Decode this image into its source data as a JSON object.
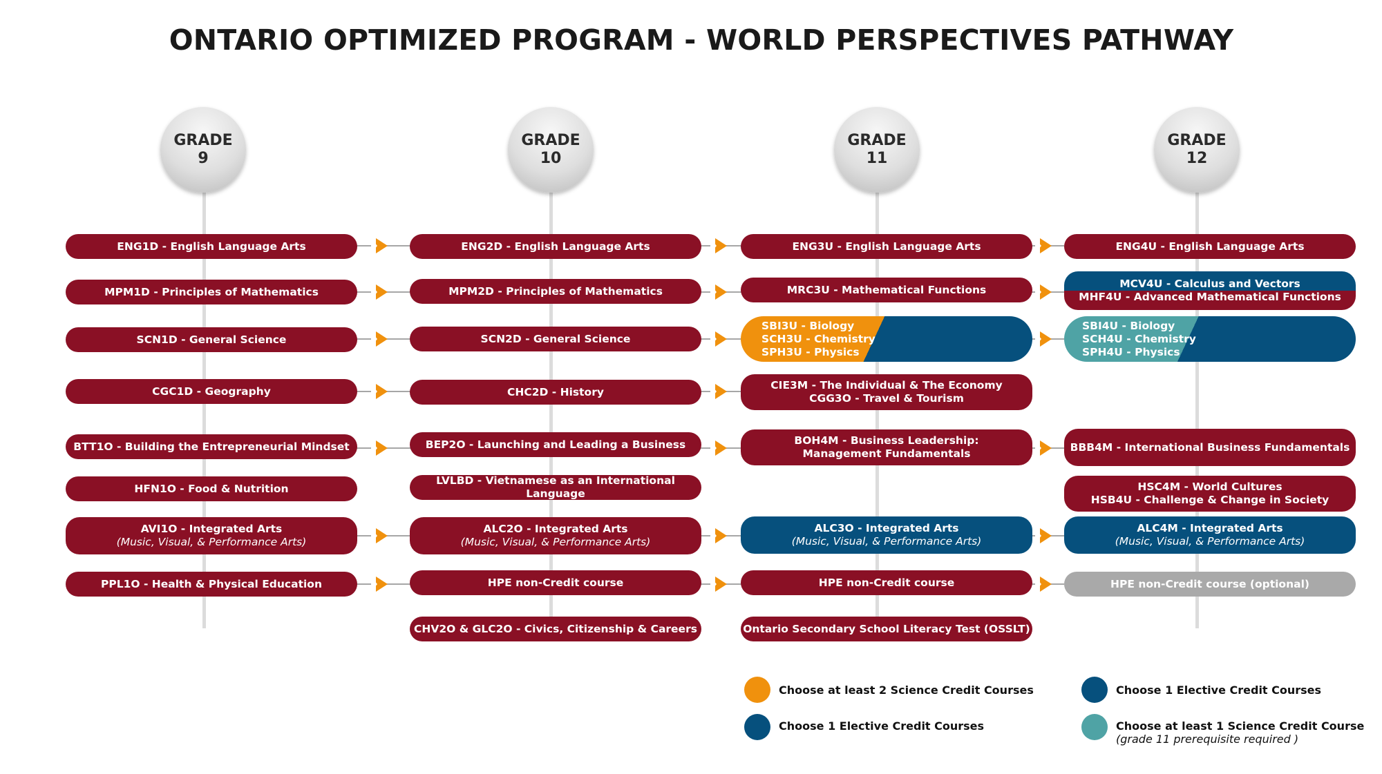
{
  "title": "ONTARIO OPTIMIZED PROGRAM - WORLD PERSPECTIVES PATHWAY",
  "grades": [
    {
      "label": "GRADE",
      "number": "9"
    },
    {
      "label": "GRADE",
      "number": "10"
    },
    {
      "label": "GRADE",
      "number": "11"
    },
    {
      "label": "GRADE",
      "number": "12"
    }
  ],
  "colors": {
    "maroon": "#8a1025",
    "blue": "#06507d",
    "orange": "#f0910d",
    "teal": "#4fa3a5",
    "grey": "#a9a9a9"
  },
  "grade9": {
    "eng": "ENG1D - English Language Arts",
    "math": "MPM1D - Principles of Mathematics",
    "sci": "SCN1D - General Science",
    "geo": "CGC1D - Geography",
    "biz": "BTT1O - Building the Entrepreneurial Mindset",
    "food": "HFN1O - Food & Nutrition",
    "arts": "AVI1O - Integrated Arts",
    "arts_sub": "(Music, Visual, & Performance Arts)",
    "pe": "PPL1O - Health & Physical Education"
  },
  "grade10": {
    "eng": "ENG2D - English Language Arts",
    "math": "MPM2D - Principles of Mathematics",
    "sci": "SCN2D - General Science",
    "hist": "CHC2D - History",
    "biz": "BEP2O - Launching and Leading a Business",
    "lang": "LVLBD - Vietnamese as an International Language",
    "arts": "ALC2O - Integrated Arts",
    "arts_sub": "(Music, Visual, & Performance Arts)",
    "pe": "HPE non-Credit course",
    "civics": "CHV2O & GLC2O - Civics, Citizenship & Careers"
  },
  "grade11": {
    "eng": "ENG3U - English Language Arts",
    "math": "MRC3U - Mathematical Functions",
    "sci": [
      "SBI3U - Biology",
      "SCH3U - Chemistry",
      "SPH3U - Physics"
    ],
    "elective_1": "CIE3M - The Individual & The Economy",
    "elective_2": "CGG3O - Travel & Tourism",
    "biz_1": "BOH4M - Business Leadership:",
    "biz_2": "Management Fundamentals",
    "arts": "ALC3O - Integrated Arts",
    "arts_sub": "(Music, Visual, & Performance Arts)",
    "pe": "HPE non-Credit course",
    "osslt": "Ontario Secondary School Literacy Test (OSSLT)"
  },
  "grade12": {
    "eng": "ENG4U - English Language Arts",
    "math_1": "MCV4U - Calculus and Vectors",
    "math_2": "MHF4U - Advanced Mathematical Functions",
    "sci": [
      "SBI4U - Biology",
      "SCH4U - Chemistry",
      "SPH4U - Physics"
    ],
    "biz": "BBB4M - International Business Fundamentals",
    "social_1": "HSC4M - World Cultures",
    "social_2": "HSB4U - Challenge & Change in Society",
    "arts": "ALC4M - Integrated Arts",
    "arts_sub": "(Music, Visual, & Performance Arts)",
    "pe": "HPE non-Credit course (optional)"
  },
  "legend": [
    {
      "color": "orange",
      "text": "Choose at least 2 Science Credit Courses"
    },
    {
      "color": "blue",
      "text": "Choose 1 Elective Credit Courses"
    },
    {
      "color": "blue",
      "text": "Choose 1 Elective Credit Courses"
    },
    {
      "color": "teal",
      "text": "Choose at least 1 Science Credit Course",
      "note": "(grade 11 prerequisite required )"
    }
  ]
}
